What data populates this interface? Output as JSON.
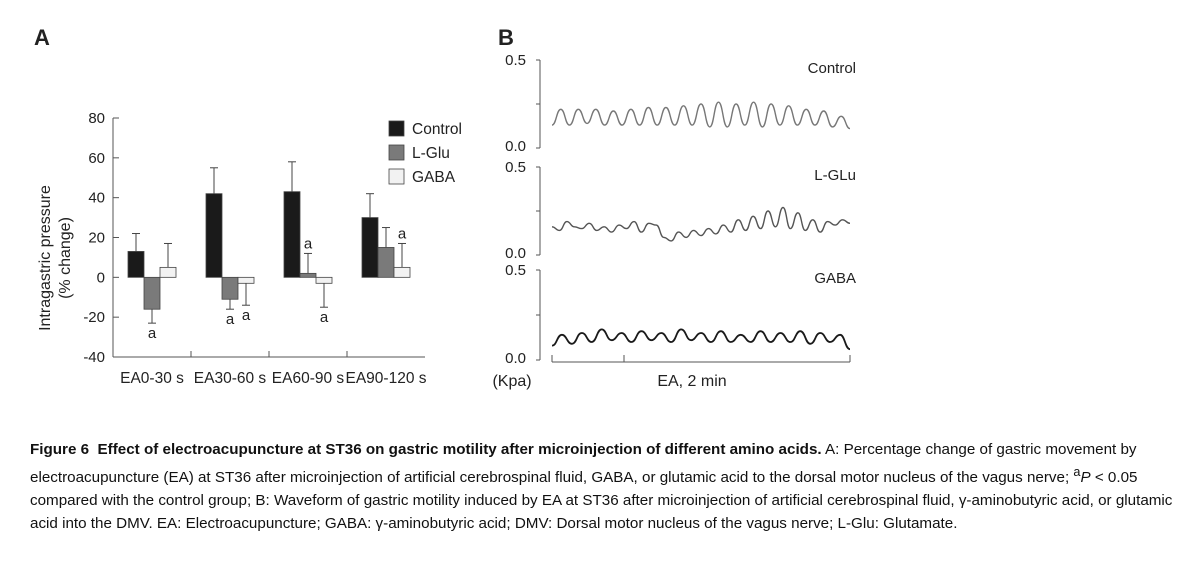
{
  "chart_data": [
    {
      "panel_label": "A",
      "type": "bar",
      "ylabel": "Intragastric pressure",
      "ylabel_unit": "(% change)",
      "ylim": [
        -40,
        80
      ],
      "yticks": [
        80,
        60,
        40,
        20,
        0,
        -20,
        -40
      ],
      "categories": [
        "EA0-30 s",
        "EA30-60 s",
        "EA60-90 s",
        "EA90-120 s"
      ],
      "legend_position": "top-right",
      "series": [
        {
          "name": "Control",
          "color": "#1a1a1a",
          "values": [
            13,
            42,
            43,
            30
          ],
          "errors": [
            9,
            13,
            15,
            12
          ],
          "marks": [
            "",
            "",
            "",
            ""
          ]
        },
        {
          "name": "L-Glu",
          "color": "#7a7a7a",
          "values": [
            -16,
            -11,
            2,
            15
          ],
          "errors": [
            7,
            5,
            10,
            10
          ],
          "marks": [
            "a",
            "a",
            "a",
            ""
          ]
        },
        {
          "name": "GABA",
          "color": "#f2f2f2",
          "values": [
            5,
            -3,
            -3,
            5
          ],
          "errors": [
            12,
            11,
            12,
            12
          ],
          "marks": [
            "",
            "a",
            "a",
            "a"
          ]
        }
      ]
    },
    {
      "panel_label": "B",
      "type": "line",
      "ylabel": "(Kpa)",
      "xlabel": "EA, 2 min",
      "ylim": [
        0.0,
        0.5
      ],
      "ytick_top": "0.5",
      "ytick_bottom": "0.0",
      "series": [
        {
          "name": "Control",
          "color": "#777777",
          "values": [
            0.13,
            0.22,
            0.13,
            0.22,
            0.14,
            0.22,
            0.13,
            0.21,
            0.13,
            0.22,
            0.13,
            0.23,
            0.13,
            0.23,
            0.13,
            0.24,
            0.13,
            0.25,
            0.12,
            0.26,
            0.12,
            0.25,
            0.13,
            0.26,
            0.12,
            0.25,
            0.13,
            0.24,
            0.13,
            0.22,
            0.13,
            0.21,
            0.12,
            0.18,
            0.11
          ]
        },
        {
          "name": "L-GLu",
          "color": "#555555",
          "values": [
            0.16,
            0.14,
            0.19,
            0.16,
            0.15,
            0.18,
            0.14,
            0.16,
            0.13,
            0.17,
            0.15,
            0.19,
            0.13,
            0.18,
            0.17,
            0.1,
            0.08,
            0.13,
            0.1,
            0.14,
            0.11,
            0.15,
            0.12,
            0.17,
            0.13,
            0.2,
            0.14,
            0.22,
            0.15,
            0.25,
            0.16,
            0.27,
            0.15,
            0.24,
            0.14,
            0.2,
            0.13,
            0.19,
            0.17,
            0.2,
            0.18
          ]
        },
        {
          "name": "GABA",
          "color": "#1a1a1a",
          "values": [
            0.08,
            0.14,
            0.09,
            0.15,
            0.1,
            0.17,
            0.11,
            0.15,
            0.1,
            0.16,
            0.11,
            0.15,
            0.1,
            0.17,
            0.11,
            0.15,
            0.1,
            0.16,
            0.1,
            0.14,
            0.1,
            0.16,
            0.1,
            0.15,
            0.1,
            0.16,
            0.09,
            0.15,
            0.1,
            0.14,
            0.06
          ]
        }
      ]
    }
  ],
  "caption": {
    "fig_label": "Figure 6",
    "fig_title": "Effect of electroacupuncture at ST36 on gastric motility after microinjection of different amino acids.",
    "part_a": "A: Percentage change of gastric movement by electroacupuncture (EA) at ST36 after microinjection of artificial cerebrospinal fluid, GABA, or glutamic acid to the dorsal motor nucleus of the vagus nerve;",
    "sig_mark": "a",
    "sig_p": "P",
    "sig_text": "< 0.05 compared with the control group;",
    "part_b": "B: Waveform of gastric motility induced by EA at ST36 after microinjection of artificial cerebrospinal fluid, γ-aminobutyric acid, or glutamic acid into the DMV. EA: Electroacupuncture; GABA: γ-aminobutyric acid; DMV: Dorsal motor nucleus of the vagus nerve; L-Glu: Glutamate."
  }
}
